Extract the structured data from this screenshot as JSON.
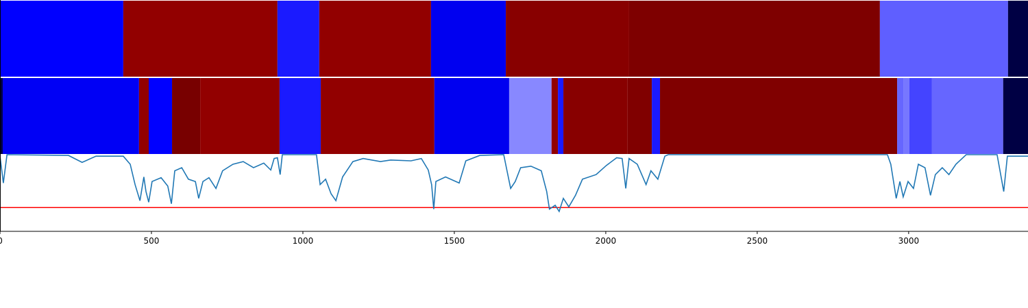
{
  "chart_data": [
    {
      "type": "segments",
      "xlim": [
        0,
        3394
      ],
      "segments": [
        {
          "start": 0,
          "end": 407,
          "color": "#0000ff"
        },
        {
          "start": 407,
          "end": 916,
          "color": "#920000"
        },
        {
          "start": 916,
          "end": 1054,
          "color": "#1a1aff"
        },
        {
          "start": 1054,
          "end": 1423,
          "color": "#920000"
        },
        {
          "start": 1423,
          "end": 1670,
          "color": "#0000f0"
        },
        {
          "start": 1670,
          "end": 2077,
          "color": "#880000"
        },
        {
          "start": 2077,
          "end": 2905,
          "color": "#7e0000"
        },
        {
          "start": 2905,
          "end": 3328,
          "color": "#5f5fff"
        },
        {
          "start": 3328,
          "end": 3394,
          "color": "#000044"
        }
      ]
    },
    {
      "type": "segments",
      "xlim": [
        0,
        3394
      ],
      "segments": [
        {
          "start": 0,
          "end": 9,
          "color": "#000044"
        },
        {
          "start": 9,
          "end": 459,
          "color": "#0000f5"
        },
        {
          "start": 459,
          "end": 491,
          "color": "#920000"
        },
        {
          "start": 491,
          "end": 568,
          "color": "#0000ff"
        },
        {
          "start": 568,
          "end": 661,
          "color": "#780000"
        },
        {
          "start": 661,
          "end": 923,
          "color": "#920000"
        },
        {
          "start": 923,
          "end": 1059,
          "color": "#1a1aff"
        },
        {
          "start": 1059,
          "end": 1434,
          "color": "#920000"
        },
        {
          "start": 1434,
          "end": 1681,
          "color": "#0000f0"
        },
        {
          "start": 1681,
          "end": 1821,
          "color": "#8888ff"
        },
        {
          "start": 1821,
          "end": 1842,
          "color": "#920000"
        },
        {
          "start": 1842,
          "end": 1860,
          "color": "#1a1aff"
        },
        {
          "start": 1860,
          "end": 2072,
          "color": "#880000"
        },
        {
          "start": 2072,
          "end": 2152,
          "color": "#800000"
        },
        {
          "start": 2152,
          "end": 2179,
          "color": "#1a1aff"
        },
        {
          "start": 2179,
          "end": 2962,
          "color": "#800000"
        },
        {
          "start": 2962,
          "end": 2984,
          "color": "#6666ff"
        },
        {
          "start": 2984,
          "end": 3002,
          "color": "#7777ff"
        },
        {
          "start": 3002,
          "end": 3077,
          "color": "#4444ff"
        },
        {
          "start": 3077,
          "end": 3312,
          "color": "#6666ff"
        },
        {
          "start": 3312,
          "end": 3394,
          "color": "#000044"
        }
      ]
    },
    {
      "type": "line",
      "xlim": [
        0,
        3394
      ],
      "ylim": [
        0,
        1
      ],
      "xticks": [
        0,
        500,
        1000,
        1500,
        2000,
        2500,
        3000
      ],
      "color": "#1f77b4",
      "threshold": 0.31,
      "threshold_color": "#ff0000",
      "x": [
        0,
        11,
        23,
        226,
        271,
        317,
        407,
        430,
        446,
        462,
        475,
        482,
        491,
        502,
        532,
        554,
        566,
        577,
        600,
        622,
        645,
        656,
        670,
        690,
        713,
        735,
        769,
        803,
        837,
        871,
        894,
        905,
        916,
        925,
        932,
        1045,
        1057,
        1075,
        1093,
        1109,
        1131,
        1165,
        1199,
        1256,
        1290,
        1357,
        1391,
        1414,
        1425,
        1432,
        1439,
        1471,
        1516,
        1538,
        1584,
        1663,
        1674,
        1686,
        1701,
        1719,
        1753,
        1787,
        1805,
        1814,
        1833,
        1846,
        1860,
        1878,
        1900,
        1923,
        1968,
        2002,
        2036,
        2054,
        2066,
        2077,
        2104,
        2133,
        2149,
        2172,
        2195,
        2206,
        2930,
        2941,
        2959,
        2971,
        2982,
        2998,
        3016,
        3032,
        3054,
        3072,
        3088,
        3111,
        3133,
        3156,
        3190,
        3292,
        3314,
        3326,
        3394
      ],
      "values": [
        0.98,
        0.63,
        1.0,
        0.99,
        0.9,
        0.98,
        0.98,
        0.875,
        0.61,
        0.4,
        0.71,
        0.52,
        0.38,
        0.65,
        0.7,
        0.59,
        0.36,
        0.79,
        0.83,
        0.68,
        0.65,
        0.43,
        0.65,
        0.7,
        0.56,
        0.79,
        0.875,
        0.91,
        0.83,
        0.89,
        0.8,
        0.95,
        0.96,
        0.74,
        1.0,
        1.0,
        0.61,
        0.68,
        0.49,
        0.4,
        0.71,
        0.91,
        0.95,
        0.91,
        0.93,
        0.92,
        0.95,
        0.8,
        0.61,
        0.29,
        0.65,
        0.71,
        0.63,
        0.92,
        0.99,
        1.0,
        0.79,
        0.56,
        0.65,
        0.83,
        0.85,
        0.79,
        0.52,
        0.29,
        0.34,
        0.26,
        0.43,
        0.32,
        0.47,
        0.68,
        0.74,
        0.86,
        0.96,
        0.95,
        0.56,
        0.95,
        0.875,
        0.61,
        0.79,
        0.68,
        0.98,
        1.0,
        1.0,
        0.875,
        0.43,
        0.65,
        0.45,
        0.65,
        0.56,
        0.875,
        0.83,
        0.47,
        0.74,
        0.83,
        0.74,
        0.875,
        1.0,
        1.0,
        0.52,
        0.98,
        0.98
      ]
    }
  ]
}
